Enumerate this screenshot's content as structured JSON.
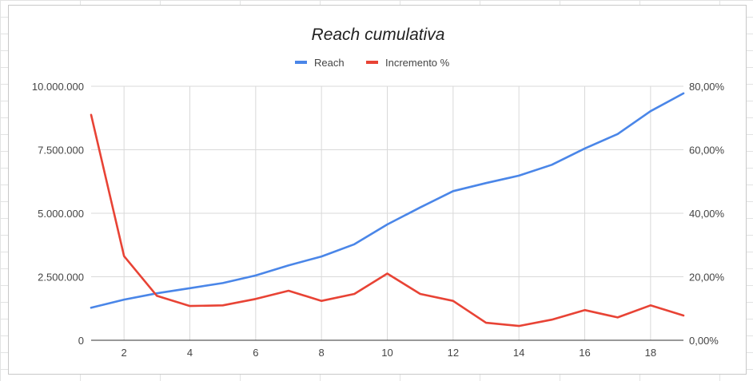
{
  "chart_data": {
    "type": "line",
    "title": "Reach cumulativa",
    "xlabel": "",
    "ylabel": "",
    "x": [
      1,
      2,
      3,
      4,
      5,
      6,
      7,
      8,
      9,
      10,
      11,
      12,
      13,
      14,
      15,
      16,
      17,
      18,
      19
    ],
    "x_ticks": [
      "2",
      "4",
      "6",
      "8",
      "10",
      "12",
      "14",
      "16",
      "18"
    ],
    "x_tick_values": [
      2,
      4,
      6,
      8,
      10,
      12,
      14,
      16,
      18
    ],
    "xlim": [
      1,
      19
    ],
    "y_left": {
      "ylim": [
        0,
        10000000
      ],
      "ticks": [
        "0",
        "2.500.000",
        "5.000.000",
        "7.500.000",
        "10.000.000"
      ],
      "tick_values": [
        0,
        2500000,
        5000000,
        7500000,
        10000000
      ]
    },
    "y_right": {
      "ylim": [
        0,
        80
      ],
      "ticks": [
        "0,00%",
        "20,00%",
        "40,00%",
        "60,00%",
        "80,00%"
      ],
      "tick_values": [
        0,
        20,
        40,
        60,
        80
      ]
    },
    "series": [
      {
        "name": "Reach",
        "axis": "left",
        "color": "#4a86e8",
        "values": [
          1280000,
          1600000,
          1850000,
          2050000,
          2250000,
          2550000,
          2950000,
          3300000,
          3780000,
          4560000,
          5230000,
          5870000,
          6190000,
          6480000,
          6910000,
          7550000,
          8120000,
          9020000,
          9720000
        ]
      },
      {
        "name": "Incremento %",
        "axis": "right",
        "color": "#e84335",
        "values": [
          71,
          26.5,
          14,
          10.8,
          11,
          13,
          15.6,
          12.4,
          14.6,
          21,
          14.6,
          12.4,
          5.5,
          4.5,
          6.5,
          9.5,
          7.2,
          11,
          7.8
        ]
      }
    ],
    "grid": true,
    "legend": "top-center"
  }
}
